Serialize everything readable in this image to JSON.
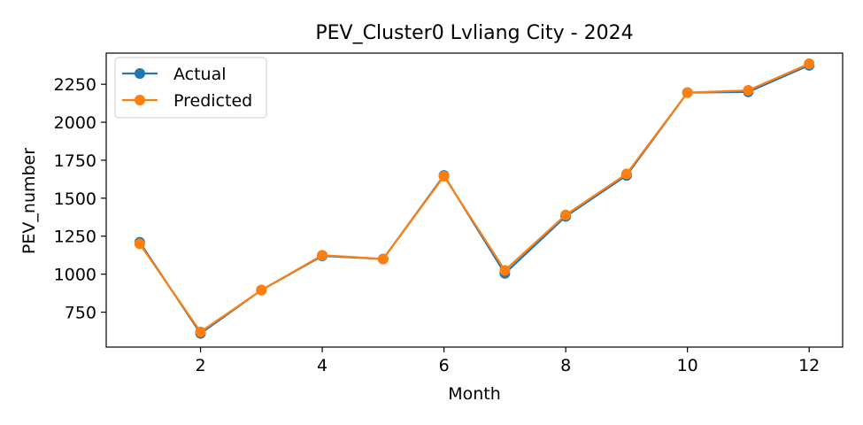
{
  "chart_data": {
    "type": "line",
    "title": "PEV_Cluster0 Lvliang City - 2024",
    "xlabel": "Month",
    "ylabel": "PEV_number",
    "xlim": [
      0.45,
      12.55
    ],
    "ylim": [
      520,
      2455
    ],
    "x_ticks": [
      2,
      4,
      6,
      8,
      10,
      12
    ],
    "y_ticks": [
      750,
      1000,
      1250,
      1500,
      1750,
      2000,
      2250
    ],
    "grid": false,
    "legend_position": "upper-left",
    "x": [
      1,
      2,
      3,
      4,
      5,
      6,
      7,
      8,
      9,
      10,
      11,
      12
    ],
    "series": [
      {
        "name": "Actual",
        "color": "#1f77b4",
        "marker": "circle",
        "values": [
          1210,
          610,
          895,
          1120,
          1100,
          1650,
          1005,
          1380,
          1650,
          2195,
          2200,
          2375
        ]
      },
      {
        "name": "Predicted",
        "color": "#ff7f0e",
        "marker": "circle",
        "values": [
          1200,
          620,
          895,
          1125,
          1100,
          1645,
          1025,
          1390,
          1660,
          2195,
          2210,
          2385
        ]
      }
    ]
  }
}
